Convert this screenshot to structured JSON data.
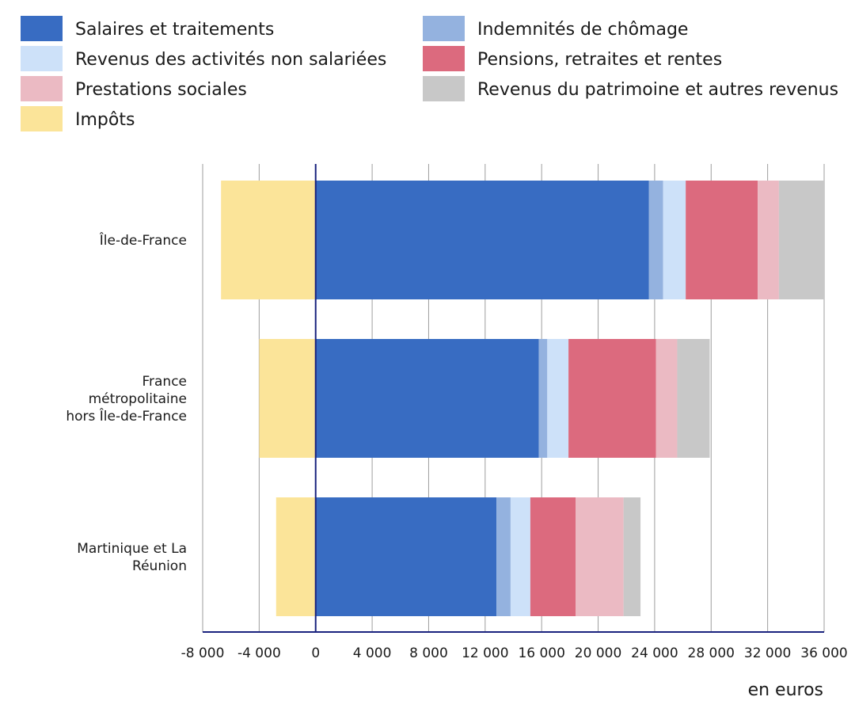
{
  "chart_data": {
    "type": "bar",
    "orientation": "horizontal",
    "stacked": true,
    "title": "",
    "xlabel": "en euros",
    "ylabel": "",
    "xlim": [
      -8000,
      36000
    ],
    "xticks": [
      -8000,
      -4000,
      0,
      4000,
      8000,
      12000,
      16000,
      20000,
      24000,
      28000,
      32000,
      36000
    ],
    "tick_labels": [
      "-8 000",
      "-4 000",
      "0",
      "4 000",
      "8 000",
      "12 000",
      "16 000",
      "20 000",
      "24 000",
      "28 000",
      "32 000",
      "36 000"
    ],
    "grid": true,
    "legend_position": "top",
    "categories": [
      [
        "Île-de-France"
      ],
      [
        "France",
        "métropolitaine",
        "hors Île-de-France"
      ],
      [
        "Martinique et La",
        "Réunion"
      ]
    ],
    "series": [
      {
        "name": "Salaires et traitements",
        "color": "#386cc2",
        "values": [
          23600,
          15800,
          12800
        ]
      },
      {
        "name": "Indemnités de chômage",
        "color": "#94b2df",
        "values": [
          1000,
          600,
          1000
        ]
      },
      {
        "name": "Revenus des activités non salariées",
        "color": "#cde1f9",
        "values": [
          1600,
          1500,
          1400
        ]
      },
      {
        "name": "Pensions, retraites et rentes",
        "color": "#dc6a7e",
        "values": [
          5100,
          6200,
          3200
        ]
      },
      {
        "name": "Prestations sociales",
        "color": "#ebbac3",
        "values": [
          1500,
          1500,
          3400
        ]
      },
      {
        "name": "Revenus du patrimoine et autres revenus",
        "color": "#c8c8c8",
        "values": [
          3200,
          2300,
          1200
        ]
      },
      {
        "name": "Impôts",
        "color": "#fbe499",
        "values": [
          -6700,
          -4000,
          -2800
        ]
      }
    ],
    "legend_order_left": [
      0,
      2,
      4,
      6
    ],
    "legend_order_right": [
      1,
      3,
      5
    ]
  }
}
